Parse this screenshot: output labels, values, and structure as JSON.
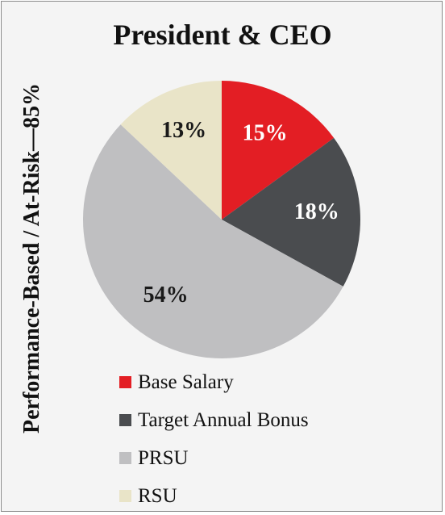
{
  "title": "President & CEO",
  "side_label": "Performance-Based / At-Risk—85%",
  "chart_data": {
    "type": "pie",
    "title": "President & CEO",
    "categories": [
      "Base Salary",
      "Target Annual Bonus",
      "PRSU",
      "RSU"
    ],
    "values": [
      15,
      18,
      54,
      13
    ],
    "data_labels": [
      "15%",
      "18%",
      "54%",
      "13%"
    ],
    "colors": [
      "#e31e24",
      "#4a4c4f",
      "#bfbfc1",
      "#e9e4c8"
    ],
    "label_colors": [
      "#ffffff",
      "#ffffff",
      "#1a1a1a",
      "#1a1a1a"
    ],
    "start_angle": "12 o'clock, clockwise",
    "legend_position": "bottom"
  }
}
